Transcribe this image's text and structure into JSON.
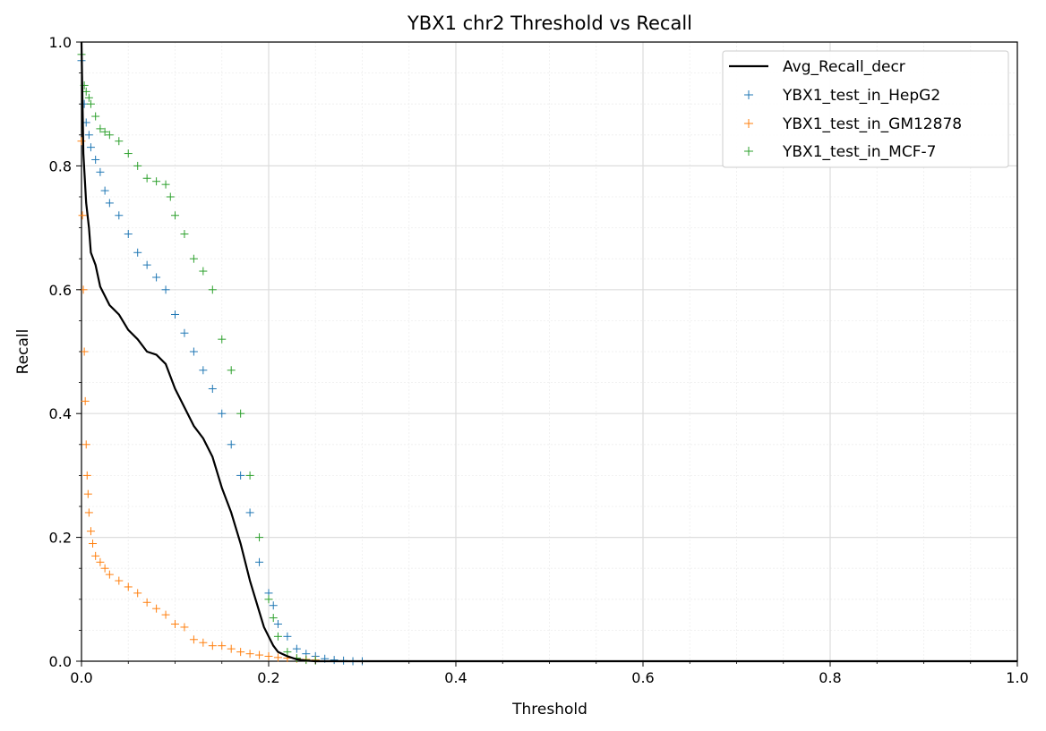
{
  "chart_data": {
    "type": "line",
    "title": "YBX1 chr2 Threshold vs Recall",
    "xlabel": "Threshold",
    "ylabel": "Recall",
    "xlim": [
      0.0,
      1.0
    ],
    "ylim": [
      0.0,
      1.0
    ],
    "xticks": [
      "0.0",
      "0.2",
      "0.4",
      "0.6",
      "0.8",
      "1.0"
    ],
    "yticks": [
      "0.0",
      "0.2",
      "0.4",
      "0.6",
      "0.8",
      "1.0"
    ],
    "grid": true,
    "minor_grid": true,
    "legend_position": "top-right",
    "series": [
      {
        "name": "Avg_Recall_decr",
        "kind": "line",
        "color": "#000000",
        "x": [
          0.0,
          0.002,
          0.005,
          0.008,
          0.01,
          0.015,
          0.02,
          0.025,
          0.03,
          0.04,
          0.05,
          0.06,
          0.07,
          0.08,
          0.09,
          0.1,
          0.11,
          0.12,
          0.13,
          0.14,
          0.15,
          0.16,
          0.17,
          0.18,
          0.19,
          0.195,
          0.2,
          0.205,
          0.21,
          0.22,
          0.23,
          0.24,
          0.25,
          0.26,
          0.28,
          0.3,
          0.35,
          0.4,
          0.5,
          0.6,
          0.7,
          0.8,
          0.9,
          1.0
        ],
        "y": [
          1.0,
          0.82,
          0.74,
          0.7,
          0.66,
          0.64,
          0.605,
          0.59,
          0.575,
          0.56,
          0.535,
          0.52,
          0.5,
          0.495,
          0.48,
          0.44,
          0.41,
          0.38,
          0.36,
          0.33,
          0.28,
          0.24,
          0.19,
          0.13,
          0.08,
          0.055,
          0.04,
          0.025,
          0.015,
          0.008,
          0.003,
          0.001,
          0.0,
          0.0,
          0.0,
          0.0,
          0.0,
          0.0,
          0.0,
          0.0,
          0.0,
          0.0,
          0.0,
          0.0
        ]
      },
      {
        "name": "YBX1_test_in_HepG2",
        "kind": "scatter",
        "marker": "+",
        "color": "#1f77b4",
        "x": [
          0.0,
          0.003,
          0.005,
          0.008,
          0.01,
          0.015,
          0.02,
          0.025,
          0.03,
          0.04,
          0.05,
          0.06,
          0.07,
          0.08,
          0.09,
          0.1,
          0.11,
          0.12,
          0.13,
          0.14,
          0.15,
          0.16,
          0.17,
          0.18,
          0.19,
          0.2,
          0.205,
          0.21,
          0.22,
          0.23,
          0.24,
          0.25,
          0.26,
          0.27,
          0.28,
          0.29,
          0.3
        ],
        "y": [
          0.97,
          0.9,
          0.87,
          0.85,
          0.83,
          0.81,
          0.79,
          0.76,
          0.74,
          0.72,
          0.69,
          0.66,
          0.64,
          0.62,
          0.6,
          0.56,
          0.53,
          0.5,
          0.47,
          0.44,
          0.4,
          0.35,
          0.3,
          0.24,
          0.16,
          0.11,
          0.09,
          0.06,
          0.04,
          0.02,
          0.012,
          0.008,
          0.004,
          0.002,
          0.001,
          0.0,
          0.0
        ]
      },
      {
        "name": "YBX1_test_in_GM12878",
        "kind": "scatter",
        "marker": "+",
        "color": "#ff7f0e",
        "x": [
          0.0,
          0.001,
          0.002,
          0.003,
          0.004,
          0.005,
          0.006,
          0.007,
          0.008,
          0.01,
          0.012,
          0.015,
          0.02,
          0.025,
          0.03,
          0.04,
          0.05,
          0.06,
          0.07,
          0.08,
          0.09,
          0.1,
          0.11,
          0.12,
          0.13,
          0.14,
          0.15,
          0.16,
          0.17,
          0.18,
          0.19,
          0.2,
          0.21,
          0.22,
          0.23,
          0.24,
          0.25
        ],
        "y": [
          0.84,
          0.72,
          0.6,
          0.5,
          0.42,
          0.35,
          0.3,
          0.27,
          0.24,
          0.21,
          0.19,
          0.17,
          0.16,
          0.15,
          0.14,
          0.13,
          0.12,
          0.11,
          0.095,
          0.085,
          0.075,
          0.06,
          0.055,
          0.035,
          0.03,
          0.025,
          0.025,
          0.02,
          0.015,
          0.012,
          0.01,
          0.008,
          0.006,
          0.005,
          0.004,
          0.003,
          0.002
        ]
      },
      {
        "name": "YBX1_test_in_MCF-7",
        "kind": "scatter",
        "marker": "+",
        "color": "#2ca02c",
        "x": [
          0.0,
          0.003,
          0.005,
          0.008,
          0.01,
          0.015,
          0.02,
          0.025,
          0.03,
          0.04,
          0.05,
          0.06,
          0.07,
          0.08,
          0.09,
          0.095,
          0.1,
          0.11,
          0.12,
          0.13,
          0.14,
          0.15,
          0.16,
          0.17,
          0.18,
          0.19,
          0.2,
          0.205,
          0.21,
          0.22,
          0.23,
          0.24,
          0.25
        ],
        "y": [
          0.98,
          0.93,
          0.92,
          0.91,
          0.9,
          0.88,
          0.86,
          0.855,
          0.85,
          0.84,
          0.82,
          0.8,
          0.78,
          0.775,
          0.77,
          0.75,
          0.72,
          0.69,
          0.65,
          0.63,
          0.6,
          0.52,
          0.47,
          0.4,
          0.3,
          0.2,
          0.1,
          0.07,
          0.04,
          0.015,
          0.005,
          0.002,
          0.001
        ]
      }
    ]
  }
}
